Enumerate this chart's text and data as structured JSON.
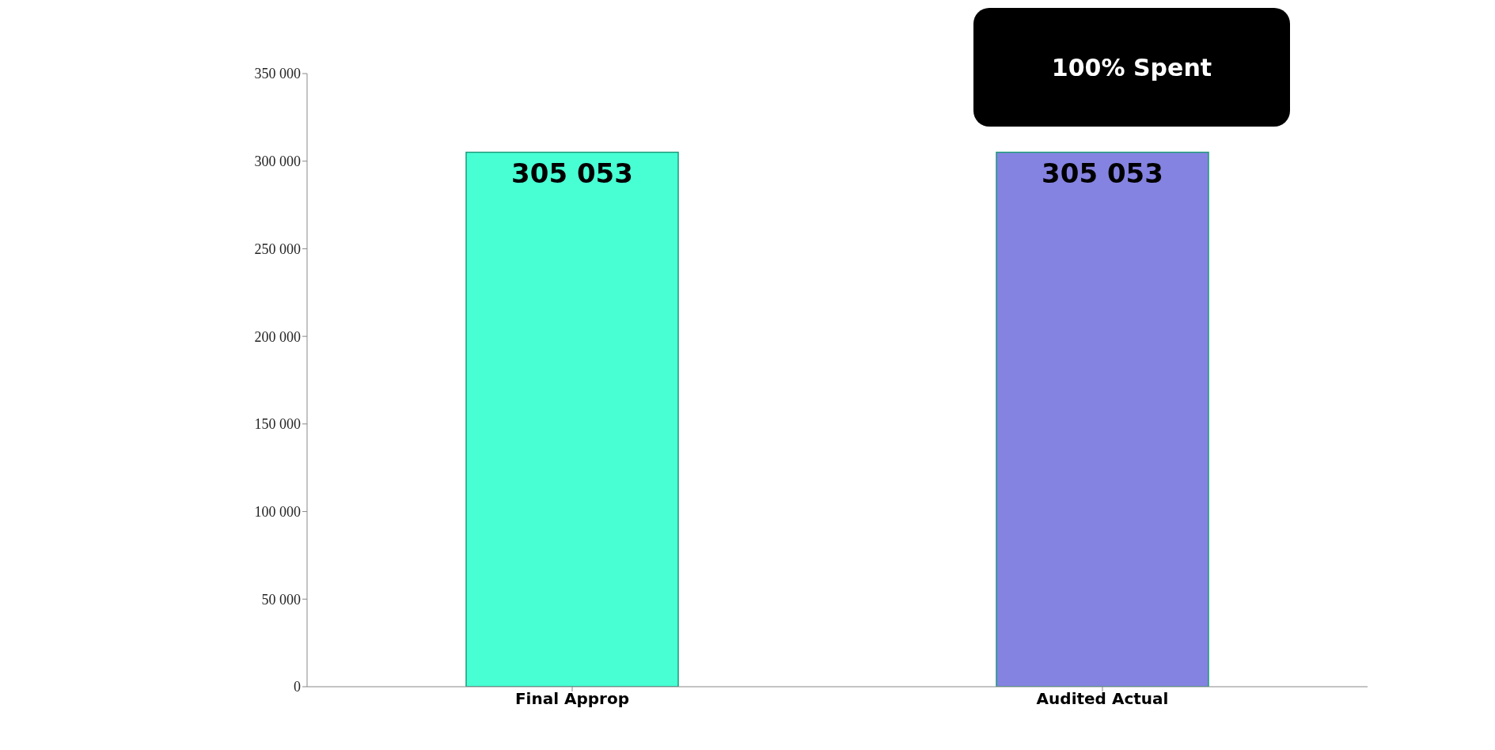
{
  "chart_data": {
    "type": "bar",
    "categories": [
      "Final Approp",
      "Audited Actual"
    ],
    "values": [
      305053,
      305053
    ],
    "colors": [
      "#48ffd4",
      "#8583e1"
    ],
    "value_labels": [
      "305 053",
      "305 053"
    ],
    "ylim": [
      0,
      350000
    ],
    "yticks": [
      {
        "value": 0,
        "label": "0"
      },
      {
        "value": 50000,
        "label": "50 000"
      },
      {
        "value": 100000,
        "label": "100 000"
      },
      {
        "value": 150000,
        "label": "150 000"
      },
      {
        "value": 200000,
        "label": "200 000"
      },
      {
        "value": 250000,
        "label": "250 000"
      },
      {
        "value": 300000,
        "label": "300 000"
      },
      {
        "value": 350000,
        "label": "350 000"
      }
    ],
    "grid": false,
    "legend": false,
    "annotations": [
      "100% Spent"
    ]
  }
}
